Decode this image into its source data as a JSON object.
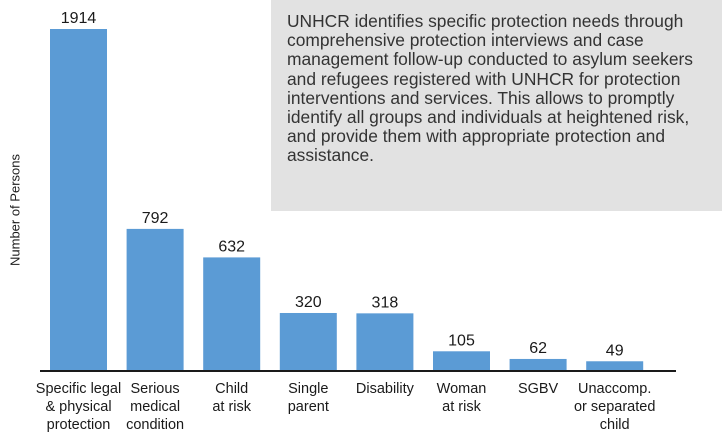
{
  "chart_data": {
    "type": "bar",
    "categories": [
      "Specific legal\n& physical\nprotection",
      "Serious\nmedical\ncondition",
      "Child\nat risk",
      "Single\nparent",
      "Disability",
      "Woman\nat risk",
      "SGBV",
      "Unaccomp.\nor separated\nchild"
    ],
    "values": [
      1914,
      792,
      632,
      320,
      318,
      105,
      62,
      49
    ],
    "value_labels": [
      "1914",
      "792",
      "632",
      "320",
      "318",
      "105",
      "62",
      "49"
    ],
    "title": "",
    "xlabel": "",
    "ylabel": "Number of Persons",
    "ylim": [
      0,
      1914
    ],
    "grid": false,
    "bar_color": "#5b9bd5",
    "axis_color": "#1a1a1a"
  },
  "note": {
    "text": "UNHCR identifies specific protection needs through comprehensive protection interviews and case management follow-up conducted to asylum seekers and refugees registered with UNHCR for protection interventions and services. This allows to promptly identify all groups and individuals at heightened risk, and provide them with appropriate protection and assistance.",
    "background": "#e2e2e2"
  }
}
